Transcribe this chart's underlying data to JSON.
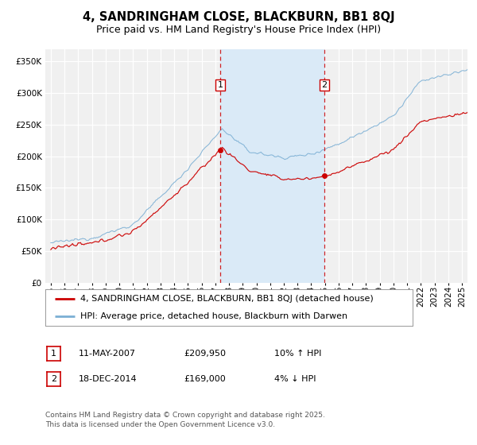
{
  "title": "4, SANDRINGHAM CLOSE, BLACKBURN, BB1 8QJ",
  "subtitle": "Price paid vs. HM Land Registry's House Price Index (HPI)",
  "legend_line1": "4, SANDRINGHAM CLOSE, BLACKBURN, BB1 8QJ (detached house)",
  "legend_line2": "HPI: Average price, detached house, Blackburn with Darwen",
  "footnote": "Contains HM Land Registry data © Crown copyright and database right 2025.\nThis data is licensed under the Open Government Licence v3.0.",
  "transaction1_date": "11-MAY-2007",
  "transaction1_price": "£209,950",
  "transaction1_hpi": "10% ↑ HPI",
  "transaction2_date": "18-DEC-2014",
  "transaction2_price": "£169,000",
  "transaction2_hpi": "4% ↓ HPI",
  "line1_color": "#cc0000",
  "line2_color": "#7bafd4",
  "shading_color": "#daeaf7",
  "vline_color": "#cc0000",
  "ylim_min": 0,
  "ylim_max": 370000,
  "yticks": [
    0,
    50000,
    100000,
    150000,
    200000,
    250000,
    300000,
    350000
  ],
  "xlim_start": 1994.6,
  "xlim_end": 2025.4,
  "event1_x": 2007.37,
  "event2_x": 2014.96,
  "event1_y": 209950,
  "event2_y": 169000,
  "background_plot": "#f0f0f0",
  "background_fig": "#ffffff",
  "grid_color": "#ffffff",
  "title_fontsize": 10.5,
  "subtitle_fontsize": 9,
  "tick_fontsize": 7.5,
  "legend_fontsize": 8,
  "annot_fontsize": 8,
  "footnote_fontsize": 6.5
}
